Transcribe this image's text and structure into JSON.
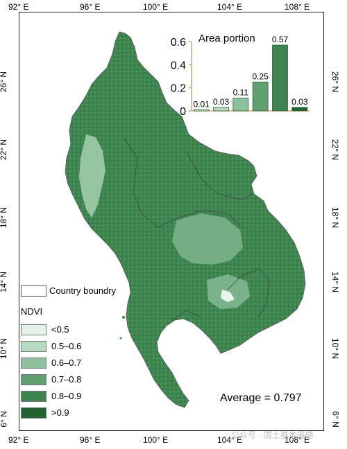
{
  "map": {
    "x_ticks": [
      "92° E",
      "96° E",
      "100° E",
      "104° E",
      "108° E"
    ],
    "y_ticks": [
      "26° N",
      "22° N",
      "18° N",
      "14° N",
      "10° N",
      "6° N"
    ]
  },
  "legend": {
    "boundary_label": "Country boundry",
    "title": "NDVI",
    "classes": [
      {
        "label": "<0.5",
        "color": "#e2f3e6"
      },
      {
        "label": "0.5–0.6",
        "color": "#b7d9bf"
      },
      {
        "label": "0.6–0.7",
        "color": "#8dc19b"
      },
      {
        "label": "0.7–0.8",
        "color": "#619f71"
      },
      {
        "label": "0.8–0.9",
        "color": "#3e8450"
      },
      {
        "label": ">0.9",
        "color": "#1f6430"
      }
    ]
  },
  "average_label": "Average = 0.797",
  "watermark": "公众号 · 国土基本遥感",
  "chart_data": {
    "type": "bar",
    "title": "Area portion",
    "categories": [
      "<0.5",
      "0.5–0.6",
      "0.6–0.7",
      "0.7–0.8",
      "0.8–0.9",
      ">0.9"
    ],
    "values": [
      0.01,
      0.03,
      0.11,
      0.25,
      0.57,
      0.03
    ],
    "value_labels": [
      "0.01",
      "0.03",
      "0.11",
      "0.25",
      "0.57",
      "0.03"
    ],
    "colors": [
      "#e2f3e6",
      "#b7d9bf",
      "#8dc19b",
      "#619f71",
      "#3e8450",
      "#1f6430"
    ],
    "ylim": [
      0,
      0.6
    ],
    "yticks": [
      "0",
      "0.2",
      "0.4",
      "0.6"
    ],
    "axis_color": "#e0a070"
  }
}
